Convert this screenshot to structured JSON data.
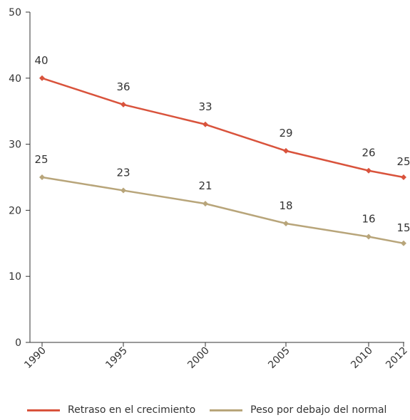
{
  "chart_data": {
    "type": "line",
    "x": [
      "1990",
      "1995",
      "2000",
      "2005",
      "2010",
      "2012"
    ],
    "series": [
      {
        "name": "Retraso en el crecimiento",
        "values": [
          40,
          36,
          33,
          29,
          26,
          25
        ],
        "color": "#d9533c"
      },
      {
        "name": "Peso por debajo del normal",
        "values": [
          25,
          23,
          21,
          18,
          16,
          15
        ],
        "color": "#b8a57a"
      }
    ],
    "y_ticks": [
      "0",
      "10",
      "20",
      "30",
      "40",
      "50"
    ],
    "ylim": [
      0,
      50
    ],
    "grid": false,
    "legend_position": "bottom",
    "title": "",
    "xlabel": "",
    "ylabel": ""
  }
}
